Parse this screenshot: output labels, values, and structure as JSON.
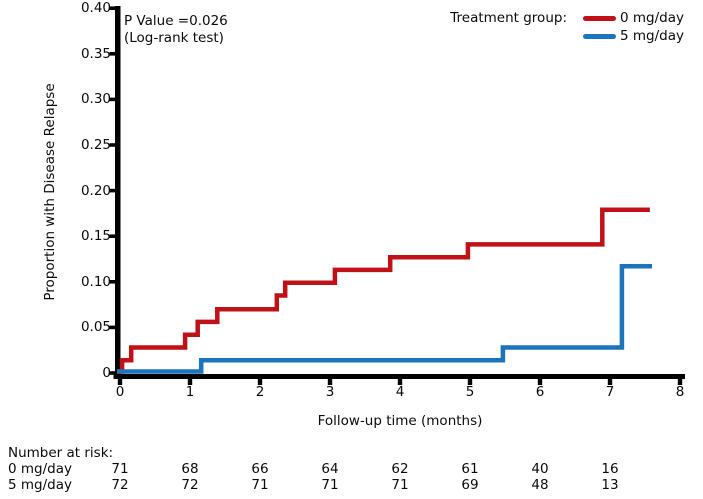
{
  "figure": {
    "annotation": {
      "line1": "P Value =0.026",
      "line2": "(Log-rank test)"
    },
    "legend": {
      "title": "Treatment group:"
    }
  },
  "chart_data": {
    "type": "line",
    "subtype": "kaplan-meier-step",
    "title": "",
    "xlabel": "Follow-up time (months)",
    "ylabel": "Proportion with Disease Relapse",
    "xlim": [
      0,
      8
    ],
    "ylim": [
      0,
      0.4
    ],
    "grid": false,
    "legend_position": "top-right",
    "xticks": [
      {
        "label": "0",
        "value": 0
      },
      {
        "label": "1",
        "value": 1
      },
      {
        "label": "2",
        "value": 2
      },
      {
        "label": "3",
        "value": 3
      },
      {
        "label": "4",
        "value": 4
      },
      {
        "label": "5",
        "value": 5
      },
      {
        "label": "6",
        "value": 6
      },
      {
        "label": "7",
        "value": 7
      },
      {
        "label": "8",
        "value": 8
      }
    ],
    "yticks": [
      {
        "label": "0",
        "value": 0
      },
      {
        "label": "0.05",
        "value": 0.05
      },
      {
        "label": "0.10",
        "value": 0.1
      },
      {
        "label": "0.15",
        "value": 0.15
      },
      {
        "label": "0.20",
        "value": 0.2
      },
      {
        "label": "0.25",
        "value": 0.25
      },
      {
        "label": "0.30",
        "value": 0.3
      },
      {
        "label": "0.35",
        "value": 0.35
      },
      {
        "label": "0.40",
        "value": 0.4
      }
    ],
    "series": [
      {
        "name": "0 mg/day",
        "color": "#c01118",
        "start_value": 0,
        "steps": [
          [
            0.03,
            0.014
          ],
          [
            0.16,
            0.028
          ],
          [
            0.93,
            0.042
          ],
          [
            1.11,
            0.056
          ],
          [
            1.39,
            0.07
          ],
          [
            2.24,
            0.085
          ],
          [
            2.36,
            0.099
          ],
          [
            3.07,
            0.113
          ],
          [
            3.86,
            0.127
          ],
          [
            4.97,
            0.141
          ],
          [
            6.89,
            0.179
          ]
        ],
        "end_time": 7.57
      },
      {
        "name": "5 mg/day",
        "color": "#1c75bc",
        "start_value": 0,
        "steps": [
          [
            1.16,
            0.014
          ],
          [
            5.47,
            0.028
          ],
          [
            7.17,
            0.117
          ]
        ],
        "end_time": 7.6
      }
    ],
    "annotation": "P Value =0.026 (Log-rank test)"
  },
  "risk_table": {
    "title": "Number at risk:",
    "times": [
      0,
      1,
      2,
      3,
      4,
      5,
      6,
      7
    ],
    "rows": [
      {
        "label": "0 mg/day",
        "values": [
          "71",
          "68",
          "66",
          "64",
          "62",
          "61",
          "40",
          "16"
        ]
      },
      {
        "label": "5 mg/day",
        "values": [
          "72",
          "72",
          "71",
          "71",
          "71",
          "69",
          "48",
          "13"
        ]
      }
    ]
  }
}
